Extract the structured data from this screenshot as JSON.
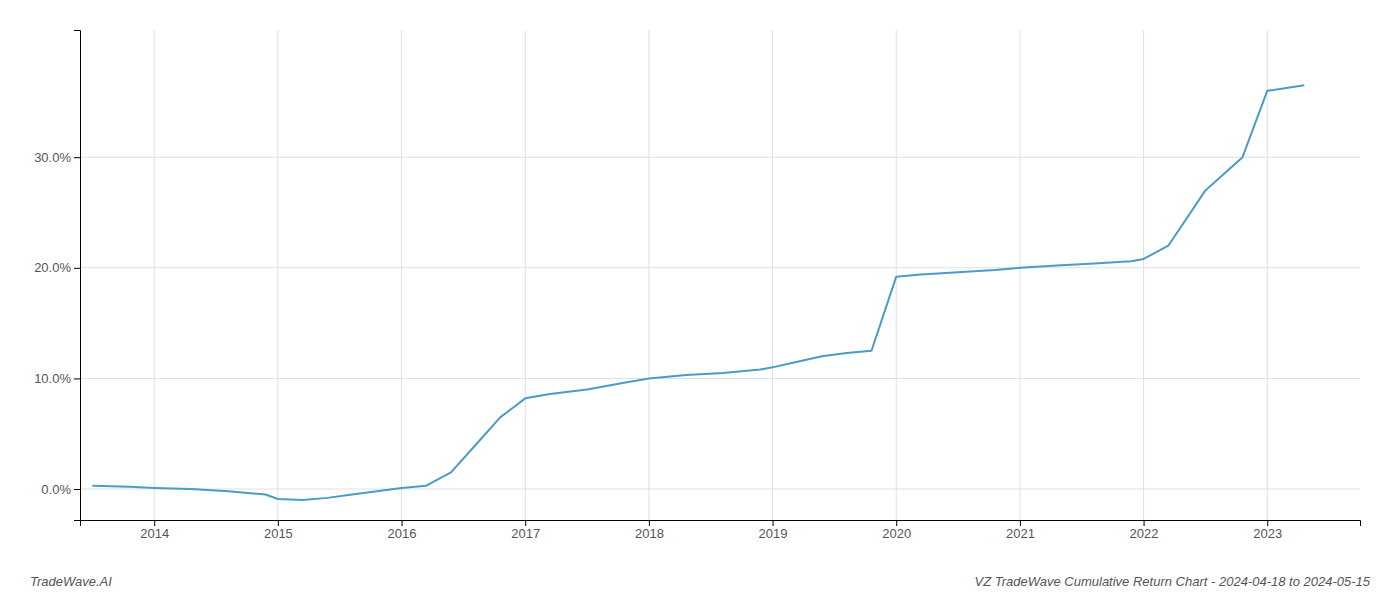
{
  "chart_data": {
    "type": "line",
    "title": "VZ TradeWave Cumulative Return Chart - 2024-04-18 to 2024-05-15",
    "annotations": [
      "TradeWave.AI"
    ],
    "x": [
      2013.5,
      2013.8,
      2014.0,
      2014.3,
      2014.6,
      2014.9,
      2015.0,
      2015.2,
      2015.4,
      2015.6,
      2015.8,
      2016.0,
      2016.2,
      2016.4,
      2016.6,
      2016.8,
      2017.0,
      2017.2,
      2017.5,
      2017.8,
      2018.0,
      2018.3,
      2018.6,
      2018.9,
      2019.0,
      2019.2,
      2019.4,
      2019.6,
      2019.8,
      2020.0,
      2020.2,
      2020.5,
      2020.8,
      2021.0,
      2021.3,
      2021.6,
      2021.9,
      2022.0,
      2022.2,
      2022.5,
      2022.8,
      2023.0,
      2023.3
    ],
    "values": [
      0.003,
      0.002,
      0.001,
      0.0,
      -0.002,
      -0.005,
      -0.009,
      -0.01,
      -0.008,
      -0.005,
      -0.002,
      0.001,
      0.003,
      0.015,
      0.04,
      0.065,
      0.082,
      0.086,
      0.09,
      0.096,
      0.1,
      0.103,
      0.105,
      0.108,
      0.11,
      0.115,
      0.12,
      0.123,
      0.125,
      0.192,
      0.194,
      0.196,
      0.198,
      0.2,
      0.202,
      0.204,
      0.206,
      0.208,
      0.22,
      0.27,
      0.3,
      0.36,
      0.365
    ],
    "color": "#4a9cc7",
    "xlim": [
      2013.4,
      2023.75
    ],
    "ylim": [
      -0.028,
      0.415
    ],
    "xticks": [
      2014,
      2015,
      2016,
      2017,
      2018,
      2019,
      2020,
      2021,
      2022,
      2023
    ],
    "yticks": [
      {
        "value": 0.0,
        "label": "0.0%"
      },
      {
        "value": 0.1,
        "label": "10.0%"
      },
      {
        "value": 0.2,
        "label": "20.0%"
      },
      {
        "value": 0.3,
        "label": "30.0%"
      }
    ],
    "grid": true
  }
}
